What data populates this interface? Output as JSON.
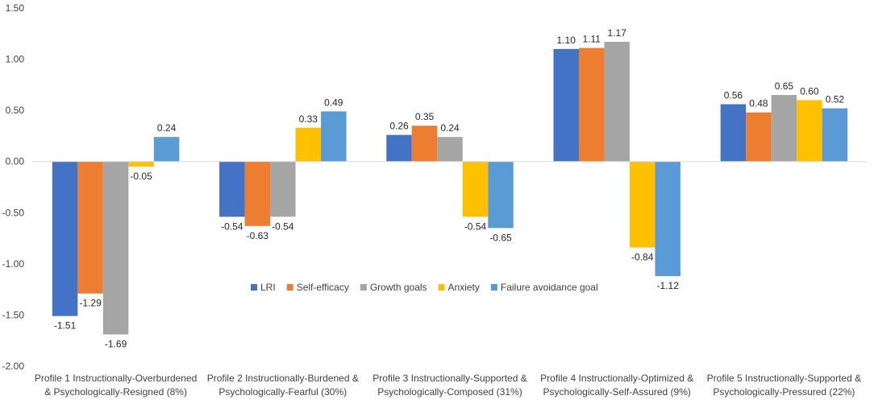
{
  "chart_data": {
    "type": "bar",
    "title": "",
    "xlabel": "",
    "ylabel": "",
    "ylim": [
      -2.0,
      1.5
    ],
    "yticks": [
      "1.50",
      "1.00",
      "0.50",
      "0.00",
      "-0.50",
      "-1.00",
      "-1.50",
      "-2.00"
    ],
    "ytick_values": [
      1.5,
      1.0,
      0.5,
      0.0,
      -0.5,
      -1.0,
      -1.5,
      -2.0
    ],
    "grid": false,
    "legend_position": "center-inside",
    "categories": [
      [
        "Profile 1 Instructionally-Overburdened",
        "& Psychologically-Resigned (8%)"
      ],
      [
        "Profile 2 Instructionally-Burdened &",
        "Psychologically-Fearful (30%)"
      ],
      [
        "Profile 3 Instructionally-Supported &",
        "Psychologically-Composed (31%)"
      ],
      [
        "Profile 4 Instructionally-Optimized &",
        "Psychologically-Self-Assured (9%)"
      ],
      [
        "Profile 5 Instructionally-Supported &",
        "Psychologically-Pressured (22%)"
      ]
    ],
    "series": [
      {
        "name": "LRI",
        "color": "#4472C4",
        "values": [
          -1.51,
          -0.54,
          0.26,
          1.1,
          0.56
        ],
        "labels": [
          "-1.51",
          "-0.54",
          "0.26",
          "1.10",
          "0.56"
        ]
      },
      {
        "name": "Self-efficacy",
        "color": "#ED7D31",
        "values": [
          -1.29,
          -0.63,
          0.35,
          1.11,
          0.48
        ],
        "labels": [
          "-1.29",
          "-0.63",
          "0.35",
          "1.11",
          "0.48"
        ]
      },
      {
        "name": "Growth goals",
        "color": "#A5A5A5",
        "values": [
          -1.69,
          -0.54,
          0.24,
          1.17,
          0.65
        ],
        "labels": [
          "-1.69",
          "-0.54",
          "0.24",
          "1.17",
          "0.65"
        ]
      },
      {
        "name": "Anxiety",
        "color": "#FFC000",
        "values": [
          -0.05,
          0.33,
          -0.54,
          -0.84,
          0.6
        ],
        "labels": [
          "-0.05",
          "0.33",
          "-0.54",
          "-0.84",
          "0.60"
        ]
      },
      {
        "name": "Failure avoidance goal",
        "color": "#5B9BD5",
        "values": [
          0.24,
          0.49,
          -0.65,
          -1.12,
          0.52
        ],
        "labels": [
          "0.24",
          "0.49",
          "-0.65",
          "-1.12",
          "0.52"
        ]
      }
    ]
  }
}
